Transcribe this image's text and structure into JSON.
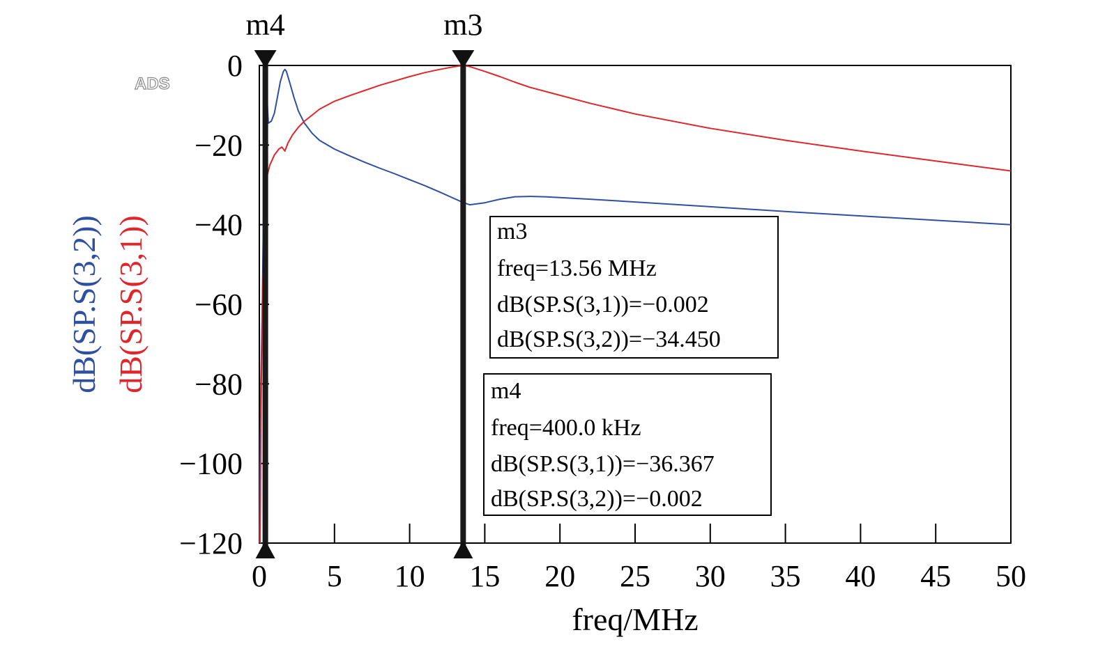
{
  "chart_data": {
    "type": "line",
    "xlabel": "freq/MHz",
    "ylabels": [
      {
        "text": "dB(SP.S(3,2))",
        "color": "#2e4fa2"
      },
      {
        "text": "dB(SP.S(3,1))",
        "color": "#e0262b"
      }
    ],
    "xlim": [
      0,
      50
    ],
    "ylim": [
      -120,
      0
    ],
    "xticks": [
      0,
      5,
      10,
      15,
      20,
      25,
      30,
      35,
      40,
      45,
      50
    ],
    "xtick_labels": [
      "0",
      "5",
      "10",
      "15",
      "20",
      "25",
      "30",
      "35",
      "40",
      "45",
      "50"
    ],
    "yticks": [
      0,
      -20,
      -40,
      -60,
      -80,
      -100,
      -120
    ],
    "ytick_labels": [
      "0",
      "−20",
      "−40",
      "−60",
      "−80",
      "−100",
      "−120"
    ],
    "watermark": "ADS",
    "series": [
      {
        "name": "dB(SP.S(3,2))",
        "color": "#2e4fa2",
        "x": [
          0.01,
          0.05,
          0.1,
          0.2,
          0.3,
          0.4,
          0.6,
          0.8,
          1.0,
          1.2,
          1.4,
          1.6,
          1.7,
          1.8,
          2.0,
          2.3,
          2.6,
          3.0,
          3.5,
          4.0,
          5,
          6,
          7,
          8,
          9,
          10,
          11,
          12,
          13,
          13.56,
          14,
          15,
          16,
          17,
          18,
          19,
          20,
          22,
          25,
          30,
          35,
          40,
          45,
          50
        ],
        "y": [
          -120,
          -100,
          -80,
          -60,
          -30,
          -0.002,
          -14.5,
          -14,
          -12,
          -8,
          -4,
          -1.5,
          -1,
          -1.5,
          -4,
          -8,
          -11.5,
          -14.5,
          -17,
          -18.8,
          -21,
          -22.7,
          -24.3,
          -25.8,
          -27.2,
          -28.7,
          -30.2,
          -31.8,
          -33.5,
          -34.45,
          -35,
          -34.5,
          -33.6,
          -33,
          -32.9,
          -33,
          -33.2,
          -33.6,
          -34.3,
          -35.5,
          -36.7,
          -37.8,
          -38.9,
          -40
        ]
      },
      {
        "name": "dB(SP.S(3,1))",
        "color": "#e0262b",
        "x": [
          0.05,
          0.1,
          0.2,
          0.3,
          0.4,
          0.5,
          0.7,
          1.0,
          1.3,
          1.5,
          1.7,
          1.9,
          2.2,
          2.6,
          3.0,
          3.5,
          4,
          5,
          6,
          7,
          8,
          9,
          10,
          11,
          12,
          13,
          13.56,
          14,
          15,
          16,
          17,
          18,
          20,
          22,
          25,
          30,
          35,
          40,
          45,
          50
        ],
        "y": [
          -120,
          -90,
          -60,
          -45,
          -36.367,
          -28,
          -25,
          -22.5,
          -21,
          -20.5,
          -21.5,
          -19.5,
          -17.5,
          -15.5,
          -14,
          -12.5,
          -11,
          -9,
          -7.6,
          -6.3,
          -5,
          -3.9,
          -2.8,
          -1.8,
          -1,
          -0.3,
          -0.002,
          -0.3,
          -1.5,
          -2.8,
          -4.2,
          -5.5,
          -7.5,
          -9.5,
          -12.2,
          -15.8,
          -18.8,
          -21.5,
          -24,
          -26.5
        ]
      }
    ],
    "markers": [
      {
        "name": "m4",
        "x": 0.4,
        "box": {
          "title": "m4",
          "lines": [
            "freq=400.0 kHz",
            "dB(SP.S(3,1))=−36.367",
            "dB(SP.S(3,2))=−0.002"
          ]
        }
      },
      {
        "name": "m3",
        "x": 13.56,
        "box": {
          "title": "m3",
          "lines": [
            "freq=13.56 MHz",
            "dB(SP.S(3,1))=−0.002",
            "dB(SP.S(3,2))=−34.450"
          ]
        }
      }
    ]
  }
}
